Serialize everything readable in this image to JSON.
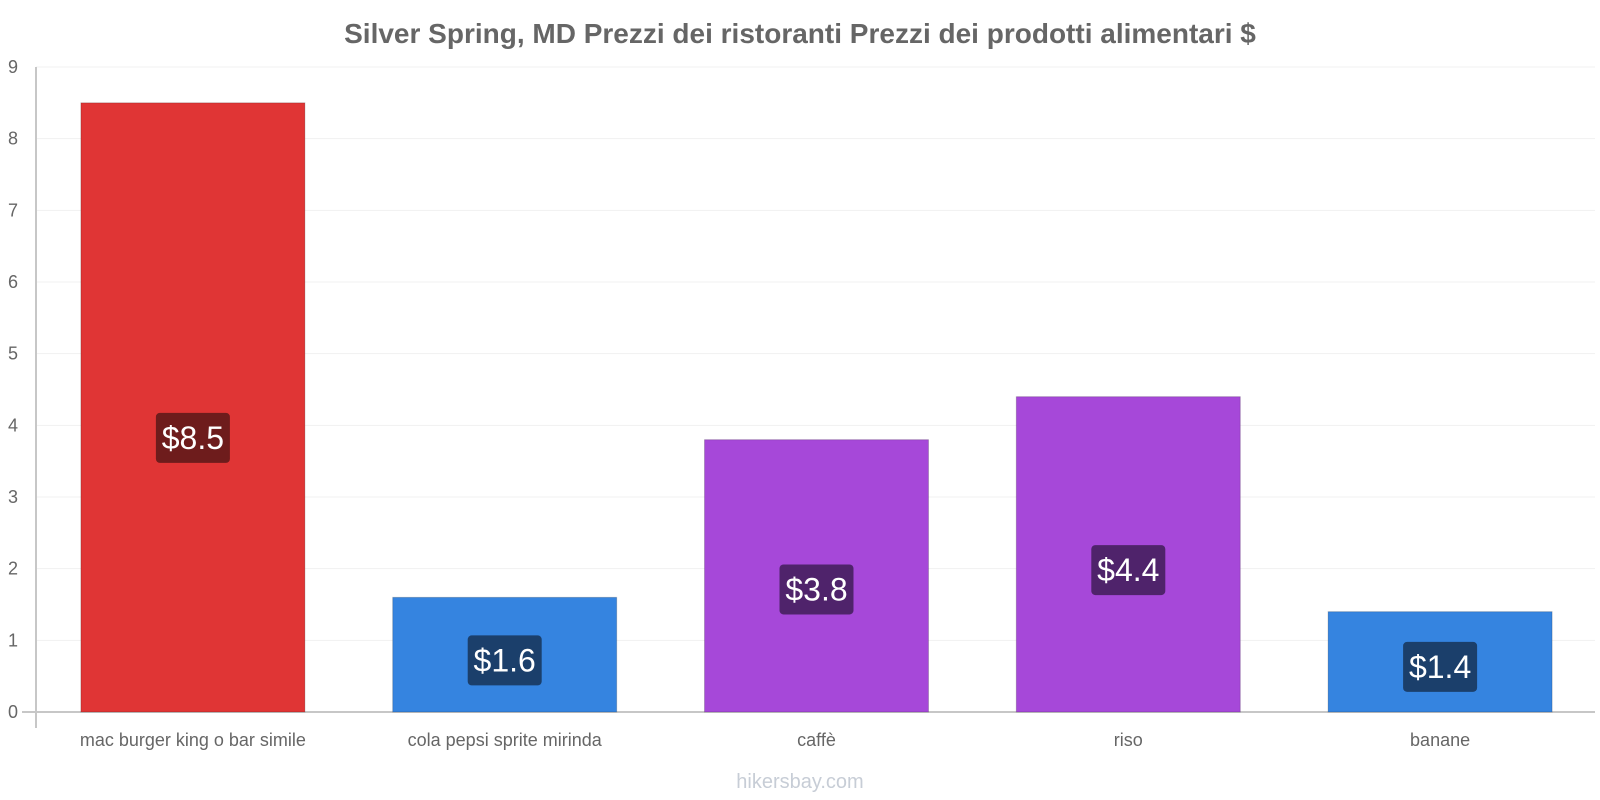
{
  "chart_data": {
    "type": "bar",
    "title": "Silver Spring, MD Prezzi dei ristoranti Prezzi dei prodotti alimentari $",
    "categories": [
      "mac burger king o bar simile",
      "cola pepsi sprite mirinda",
      "caffè",
      "riso",
      "banane"
    ],
    "values": [
      8.5,
      1.6,
      3.8,
      4.4,
      1.4
    ],
    "data_labels": [
      "$8.5",
      "$1.6",
      "$3.8",
      "$4.4",
      "$1.4"
    ],
    "colors": [
      "#e03535",
      "#3584e0",
      "#a648d9",
      "#a648d9",
      "#3584e0"
    ],
    "label_bg_colors": [
      "#6e1c1c",
      "#1b3f6b",
      "#4f236b",
      "#4f236b",
      "#1b3f6b"
    ],
    "xlabel": "",
    "ylabel": "",
    "ylim": [
      0,
      9
    ],
    "yticks": [
      "0",
      "1",
      "2",
      "3",
      "4",
      "5",
      "6",
      "7",
      "8",
      "9"
    ],
    "grid": true,
    "legend": "none"
  },
  "watermark": "hikersbay.com"
}
